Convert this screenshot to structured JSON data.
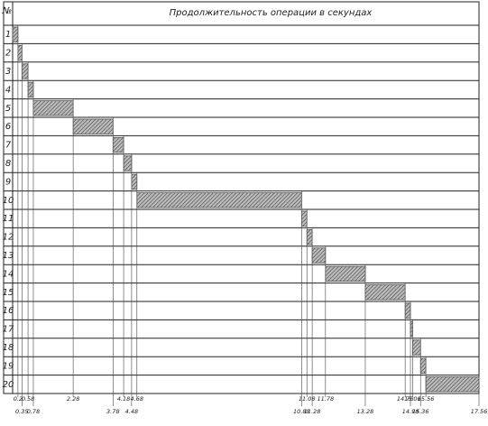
{
  "chart_data": {
    "type": "gantt",
    "title": "Продолжительность операции в секундах",
    "header": "№",
    "categories": [
      "1",
      "2",
      "3",
      "4",
      "5",
      "6",
      "7",
      "8",
      "9",
      "10",
      "11",
      "12",
      "13",
      "14",
      "15",
      "16",
      "17",
      "18",
      "19",
      "20"
    ],
    "starts": [
      0,
      0.2,
      0.35,
      0.58,
      0.78,
      2.28,
      3.78,
      4.18,
      4.48,
      4.68,
      10.88,
      11.08,
      11.28,
      11.78,
      13.28,
      14.78,
      14.98,
      15.06,
      15.36,
      15.56
    ],
    "ends": [
      0.2,
      0.35,
      0.58,
      0.78,
      2.28,
      3.78,
      4.18,
      4.48,
      4.68,
      10.88,
      11.08,
      11.28,
      11.78,
      13.28,
      14.78,
      14.98,
      15.06,
      15.36,
      15.56,
      17.56
    ],
    "xlim": [
      0,
      17.56
    ],
    "xticks": [
      0.2,
      0.35,
      0.58,
      0.78,
      2.28,
      3.78,
      4.18,
      4.48,
      4.68,
      10.88,
      11.08,
      11.28,
      11.78,
      13.28,
      14.78,
      14.98,
      15.06,
      15.36,
      15.56,
      17.56
    ],
    "color": "#555555"
  }
}
